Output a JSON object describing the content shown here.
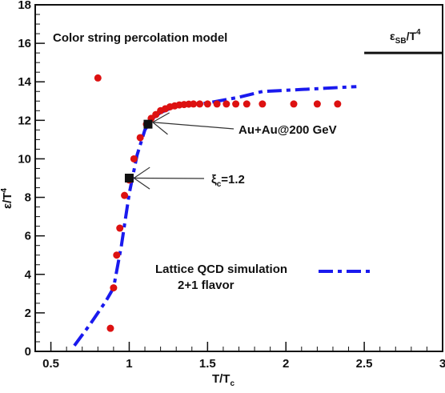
{
  "chart_data": {
    "type": "scatter",
    "title": "",
    "xlabel": "T/T",
    "xlabel_sub": "c",
    "ylabel": "ε/T",
    "ylabel_sup": "4",
    "xlim": [
      0.4,
      3.0
    ],
    "ylim": [
      0,
      18
    ],
    "x_ticks": [
      0.5,
      1,
      1.5,
      2,
      2.5,
      3
    ],
    "x_tick_labels": [
      "0.5",
      "1",
      "1.5",
      "2",
      "2.5",
      "3"
    ],
    "y_ticks": [
      0,
      2,
      4,
      6,
      8,
      10,
      12,
      14,
      16,
      18
    ],
    "y_tick_labels": [
      "0",
      "2",
      "4",
      "6",
      "8",
      "10",
      "12",
      "14",
      "16",
      "18"
    ],
    "grid": false,
    "model_label": "Color string percolation model",
    "series": [
      {
        "kind": "points",
        "color": "#dd1111",
        "points": [
          [
            0.8,
            14.2
          ],
          [
            0.88,
            1.2
          ],
          [
            0.9,
            3.3
          ],
          [
            0.92,
            5.0
          ],
          [
            0.94,
            6.4
          ],
          [
            0.97,
            8.1
          ],
          [
            1.0,
            8.9
          ],
          [
            1.03,
            10.0
          ],
          [
            1.07,
            11.1
          ],
          [
            1.11,
            11.8
          ],
          [
            1.14,
            12.1
          ],
          [
            1.17,
            12.3
          ],
          [
            1.2,
            12.5
          ],
          [
            1.23,
            12.6
          ],
          [
            1.26,
            12.7
          ],
          [
            1.29,
            12.75
          ],
          [
            1.32,
            12.8
          ],
          [
            1.35,
            12.82
          ],
          [
            1.38,
            12.84
          ],
          [
            1.41,
            12.85
          ],
          [
            1.45,
            12.85
          ],
          [
            1.5,
            12.85
          ],
          [
            1.56,
            12.85
          ],
          [
            1.62,
            12.85
          ],
          [
            1.68,
            12.85
          ],
          [
            1.75,
            12.85
          ],
          [
            1.85,
            12.85
          ],
          [
            2.05,
            12.85
          ],
          [
            2.2,
            12.85
          ],
          [
            2.33,
            12.85
          ]
        ]
      },
      {
        "kind": "markers",
        "color": "#111111",
        "points": [
          [
            1.0,
            9.0
          ],
          [
            1.12,
            11.8
          ]
        ]
      },
      {
        "name": "Lattice QCD simulation",
        "name_line2": "2+1 flavor",
        "kind": "dashed-line",
        "color": "#1a1aee",
        "points": [
          [
            0.65,
            0.3
          ],
          [
            0.75,
            1.4
          ],
          [
            0.85,
            2.6
          ],
          [
            0.9,
            3.3
          ],
          [
            0.95,
            5.5
          ],
          [
            1.0,
            8.2
          ],
          [
            1.05,
            10.2
          ],
          [
            1.1,
            11.5
          ],
          [
            1.15,
            12.1
          ],
          [
            1.2,
            12.4
          ],
          [
            1.3,
            12.75
          ],
          [
            1.5,
            12.9
          ],
          [
            1.7,
            13.2
          ],
          [
            1.85,
            13.5
          ],
          [
            2.1,
            13.6
          ],
          [
            2.45,
            13.75
          ]
        ]
      }
    ],
    "sb_limit": {
      "label": "ε",
      "label_sub": "SB",
      "label_tail": "/T",
      "label_sup": "4",
      "y": 15.5,
      "x_from": 2.5,
      "x_to": 3.0
    },
    "annotations": [
      {
        "text": "Au+Au@200 GeV",
        "arrow_to": [
          1.15,
          11.9
        ]
      },
      {
        "text_main": "ξ",
        "text_sub": "c",
        "text_tail": "=1.2",
        "arrow_to": [
          1.03,
          9.0
        ]
      }
    ]
  }
}
